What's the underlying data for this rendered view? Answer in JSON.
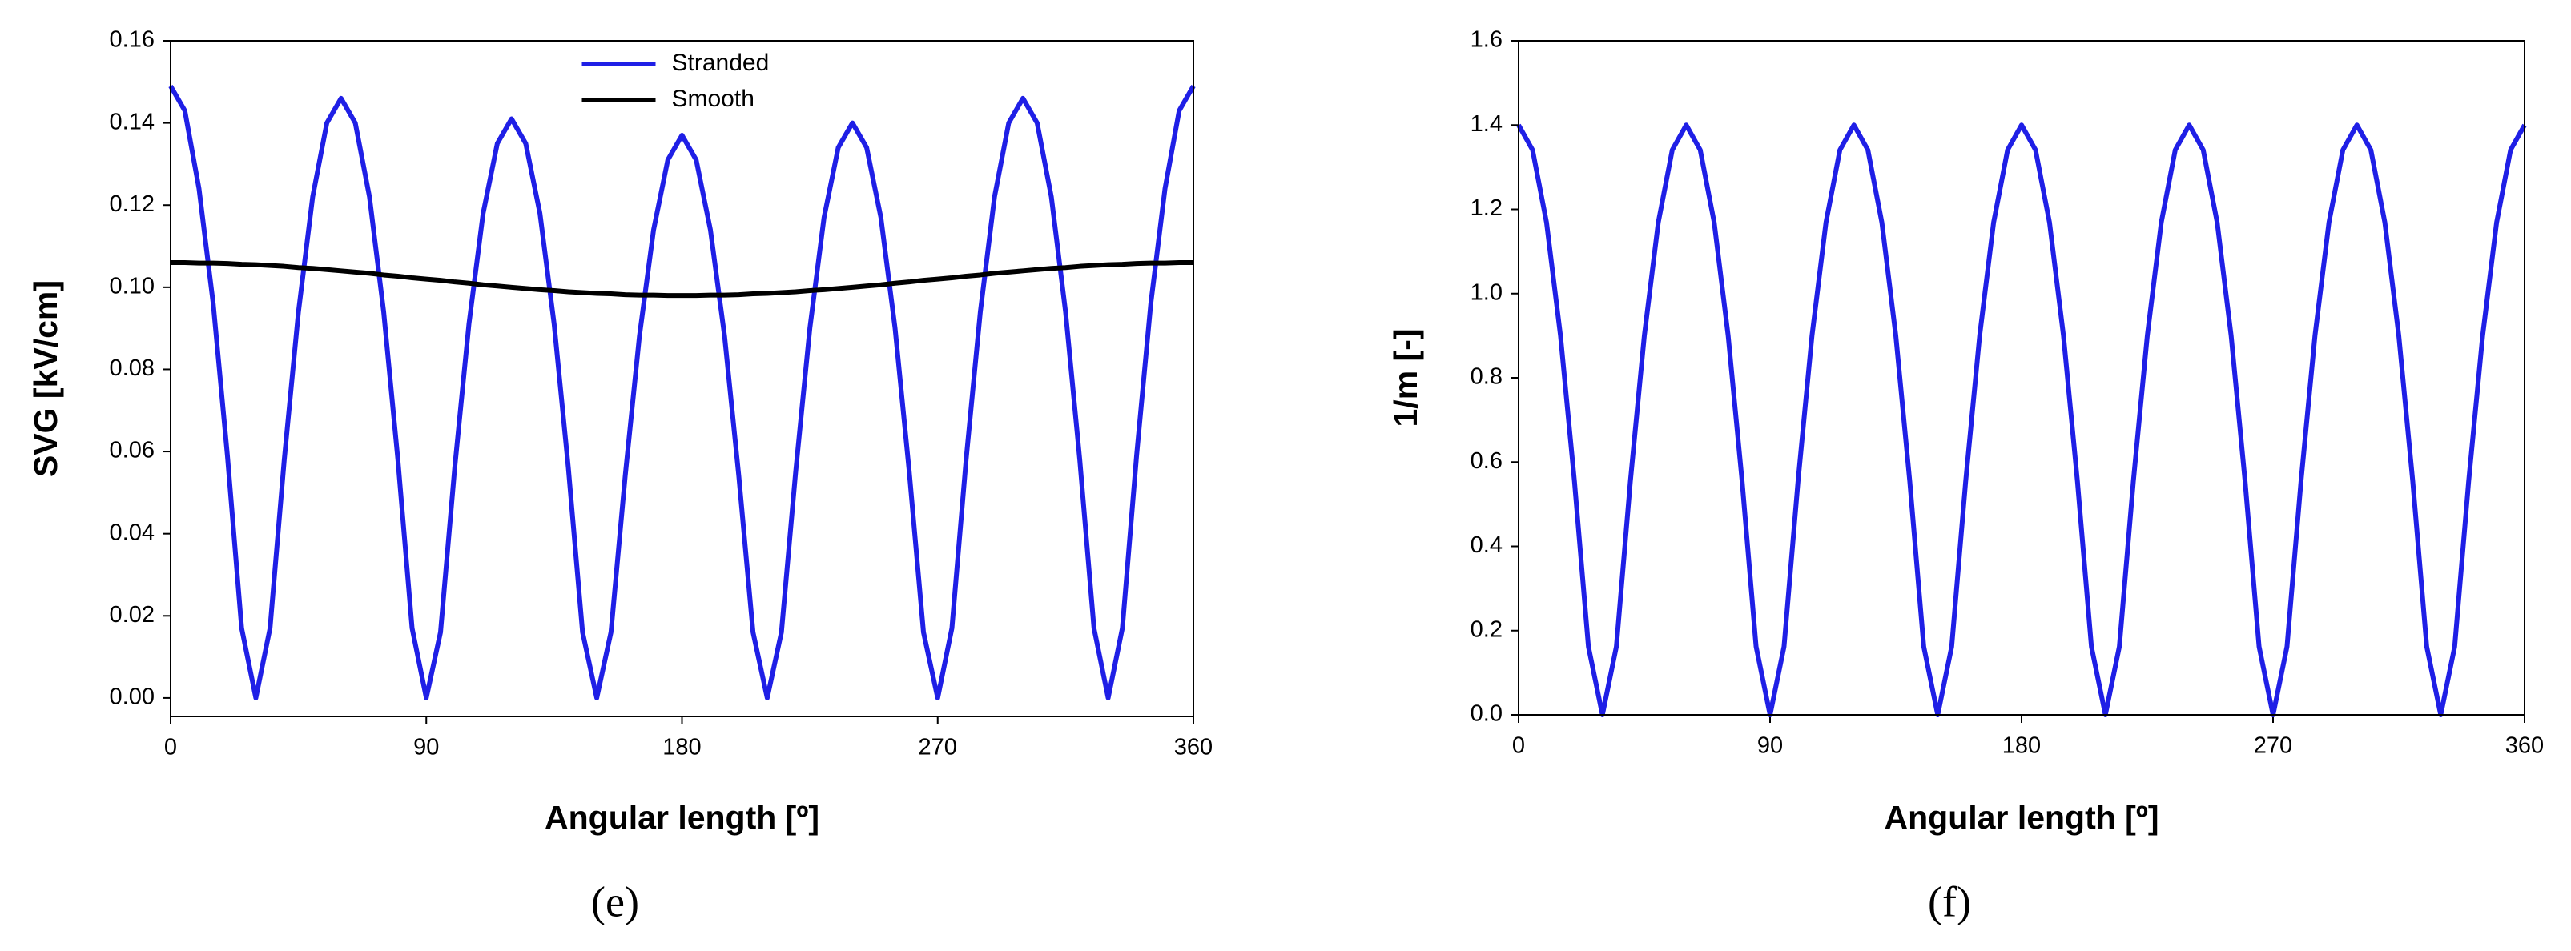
{
  "chart_data": [
    {
      "type": "line",
      "xlabel": "Angular length [º]",
      "ylabel": "SVG [kV/cm]",
      "caption": "(e)",
      "xlim": [
        0,
        360
      ],
      "xticks": [
        0,
        90,
        180,
        270,
        360
      ],
      "ylim": [
        -0.0045,
        0.16
      ],
      "yticks": [
        {
          "value": 0,
          "label": "0.00"
        },
        {
          "value": 0.02,
          "label": "0.02"
        },
        {
          "value": 0.04,
          "label": "0.04"
        },
        {
          "value": 0.06,
          "label": "0.06"
        },
        {
          "value": 0.08,
          "label": "0.08"
        },
        {
          "value": 0.1,
          "label": "0.10"
        },
        {
          "value": 0.12,
          "label": "0.12"
        },
        {
          "value": 0.14,
          "label": "0.14"
        },
        {
          "value": 0.16,
          "label": "0.16"
        }
      ],
      "legend": "upper center",
      "x": [
        0,
        5,
        10,
        15,
        20,
        25,
        30,
        35,
        40,
        45,
        50,
        55,
        60,
        65,
        70,
        75,
        80,
        85,
        90,
        95,
        100,
        105,
        110,
        115,
        120,
        125,
        130,
        135,
        140,
        145,
        150,
        155,
        160,
        165,
        170,
        175,
        180,
        185,
        190,
        195,
        200,
        205,
        210,
        215,
        220,
        225,
        230,
        235,
        240,
        245,
        250,
        255,
        260,
        265,
        270,
        275,
        280,
        285,
        290,
        295,
        300,
        305,
        310,
        315,
        320,
        325,
        330,
        335,
        340,
        345,
        350,
        355,
        360
      ],
      "series": [
        {
          "name": "Stranded",
          "color": "#1f1fe6",
          "values": [
            0.149,
            0.143,
            0.124,
            0.096,
            0.059,
            0.017,
            0,
            0.017,
            0.058,
            0.094,
            0.122,
            0.14,
            0.146,
            0.14,
            0.122,
            0.094,
            0.058,
            0.017,
            0,
            0.016,
            0.056,
            0.091,
            0.118,
            0.135,
            0.141,
            0.135,
            0.118,
            0.091,
            0.056,
            0.016,
            0,
            0.016,
            0.054,
            0.088,
            0.114,
            0.131,
            0.137,
            0.131,
            0.114,
            0.088,
            0.054,
            0.016,
            0,
            0.016,
            0.055,
            0.09,
            0.117,
            0.134,
            0.14,
            0.134,
            0.117,
            0.09,
            0.055,
            0.016,
            0,
            0.017,
            0.058,
            0.094,
            0.122,
            0.14,
            0.146,
            0.14,
            0.122,
            0.094,
            0.058,
            0.017,
            0,
            0.017,
            0.059,
            0.096,
            0.124,
            0.143,
            0.149
          ]
        },
        {
          "name": "Smooth",
          "color": "#000000",
          "values": [
            0.106,
            0.106,
            0.1059,
            0.1059,
            0.1058,
            0.1056,
            0.1055,
            0.1053,
            0.1051,
            0.1048,
            0.1046,
            0.1043,
            0.104,
            0.1037,
            0.1034,
            0.103,
            0.1027,
            0.1023,
            0.102,
            0.1017,
            0.1013,
            0.101,
            0.1006,
            0.1003,
            0.1,
            0.0997,
            0.0994,
            0.0992,
            0.0989,
            0.0987,
            0.0985,
            0.0984,
            0.0982,
            0.0981,
            0.0981,
            0.098,
            0.098,
            0.098,
            0.0981,
            0.0981,
            0.0982,
            0.0984,
            0.0985,
            0.0987,
            0.0989,
            0.0992,
            0.0994,
            0.0997,
            0.1,
            0.1003,
            0.1006,
            0.101,
            0.1013,
            0.1017,
            0.102,
            0.1023,
            0.1027,
            0.103,
            0.1034,
            0.1037,
            0.104,
            0.1043,
            0.1046,
            0.1048,
            0.1051,
            0.1053,
            0.1055,
            0.1056,
            0.1058,
            0.1059,
            0.1059,
            0.106,
            0.106
          ]
        }
      ]
    },
    {
      "type": "line",
      "xlabel": "Angular length [º]",
      "ylabel": "1/m [-]",
      "caption": "(f)",
      "xlim": [
        0,
        360
      ],
      "xticks": [
        0,
        90,
        180,
        270,
        360
      ],
      "ylim": [
        0,
        1.6
      ],
      "yticks": [
        {
          "value": 0,
          "label": "0.0"
        },
        {
          "value": 0.2,
          "label": "0.2"
        },
        {
          "value": 0.4,
          "label": "0.4"
        },
        {
          "value": 0.6,
          "label": "0.6"
        },
        {
          "value": 0.8,
          "label": "0.8"
        },
        {
          "value": 1,
          "label": "1.0"
        },
        {
          "value": 1.2,
          "label": "1.2"
        },
        {
          "value": 1.4,
          "label": "1.4"
        },
        {
          "value": 1.6,
          "label": "1.6"
        }
      ],
      "x": [
        0,
        5,
        10,
        15,
        20,
        25,
        30,
        35,
        40,
        45,
        50,
        55,
        60,
        65,
        70,
        75,
        80,
        85,
        90,
        95,
        100,
        105,
        110,
        115,
        120,
        125,
        130,
        135,
        140,
        145,
        150,
        155,
        160,
        165,
        170,
        175,
        180,
        185,
        190,
        195,
        200,
        205,
        210,
        215,
        220,
        225,
        230,
        235,
        240,
        245,
        250,
        255,
        260,
        265,
        270,
        275,
        280,
        285,
        290,
        295,
        300,
        305,
        310,
        315,
        320,
        325,
        330,
        335,
        340,
        345,
        350,
        355,
        360
      ],
      "series": [
        {
          "color": "#1f1fe6",
          "values": [
            1.4,
            1.341,
            1.169,
            0.9,
            0.554,
            0.162,
            0,
            0.162,
            0.554,
            0.9,
            1.169,
            1.341,
            1.4,
            1.341,
            1.169,
            0.9,
            0.554,
            0.162,
            0,
            0.162,
            0.554,
            0.9,
            1.169,
            1.341,
            1.4,
            1.341,
            1.169,
            0.9,
            0.554,
            0.162,
            0,
            0.162,
            0.554,
            0.9,
            1.169,
            1.341,
            1.4,
            1.341,
            1.169,
            0.9,
            0.554,
            0.162,
            0,
            0.162,
            0.554,
            0.9,
            1.169,
            1.341,
            1.4,
            1.341,
            1.169,
            0.9,
            0.554,
            0.162,
            0,
            0.162,
            0.554,
            0.9,
            1.169,
            1.341,
            1.4,
            1.341,
            1.169,
            0.9,
            0.554,
            0.162,
            0,
            0.162,
            0.554,
            0.9,
            1.169,
            1.341,
            1.4
          ]
        }
      ]
    }
  ]
}
